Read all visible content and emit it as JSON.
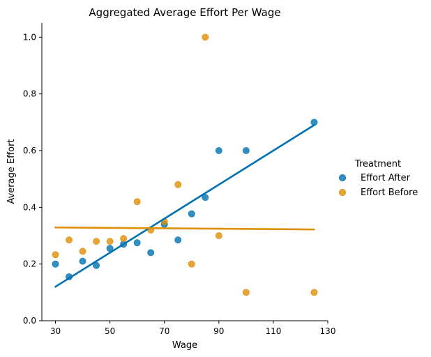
{
  "chart_data": {
    "type": "scatter",
    "title": "Aggregated Average Effort Per Wage",
    "xlabel": "Wage",
    "ylabel": "Average Effort",
    "xlim": [
      25,
      130
    ],
    "ylim": [
      0,
      1.05
    ],
    "xticks": [
      30,
      50,
      70,
      90,
      110,
      130
    ],
    "yticks": [
      0.0,
      0.2,
      0.4,
      0.6,
      0.8,
      1.0
    ],
    "xtick_labels": [
      "30",
      "50",
      "70",
      "90",
      "110",
      "130"
    ],
    "ytick_labels": [
      "0.0",
      "0.2",
      "0.4",
      "0.6",
      "0.8",
      "1.0"
    ],
    "grid": false,
    "legend": {
      "title": "Treatment",
      "placement": "right-outside"
    },
    "series": [
      {
        "name": "Effort After",
        "color": "#0173b2",
        "points": [
          [
            30,
            0.2
          ],
          [
            35,
            0.155
          ],
          [
            40,
            0.21
          ],
          [
            45,
            0.195
          ],
          [
            50,
            0.255
          ],
          [
            55,
            0.27
          ],
          [
            60,
            0.275
          ],
          [
            65,
            0.24
          ],
          [
            70,
            0.34
          ],
          [
            75,
            0.285
          ],
          [
            80,
            0.377
          ],
          [
            85,
            0.435
          ],
          [
            90,
            0.6
          ],
          [
            100,
            0.6
          ],
          [
            125,
            0.7
          ]
        ],
        "fit_line": [
          [
            30,
            0.12
          ],
          [
            125,
            0.69
          ]
        ]
      },
      {
        "name": "Effort Before",
        "color": "#de8f05",
        "points": [
          [
            30,
            0.233
          ],
          [
            35,
            0.285
          ],
          [
            40,
            0.245
          ],
          [
            45,
            0.28
          ],
          [
            50,
            0.28
          ],
          [
            55,
            0.29
          ],
          [
            60,
            0.42
          ],
          [
            65,
            0.32
          ],
          [
            70,
            0.35
          ],
          [
            75,
            0.48
          ],
          [
            80,
            0.2
          ],
          [
            85,
            1.0
          ],
          [
            90,
            0.3
          ],
          [
            100,
            0.1
          ],
          [
            125,
            0.1
          ]
        ],
        "fit_line": [
          [
            30,
            0.329
          ],
          [
            125,
            0.322
          ]
        ]
      }
    ]
  }
}
